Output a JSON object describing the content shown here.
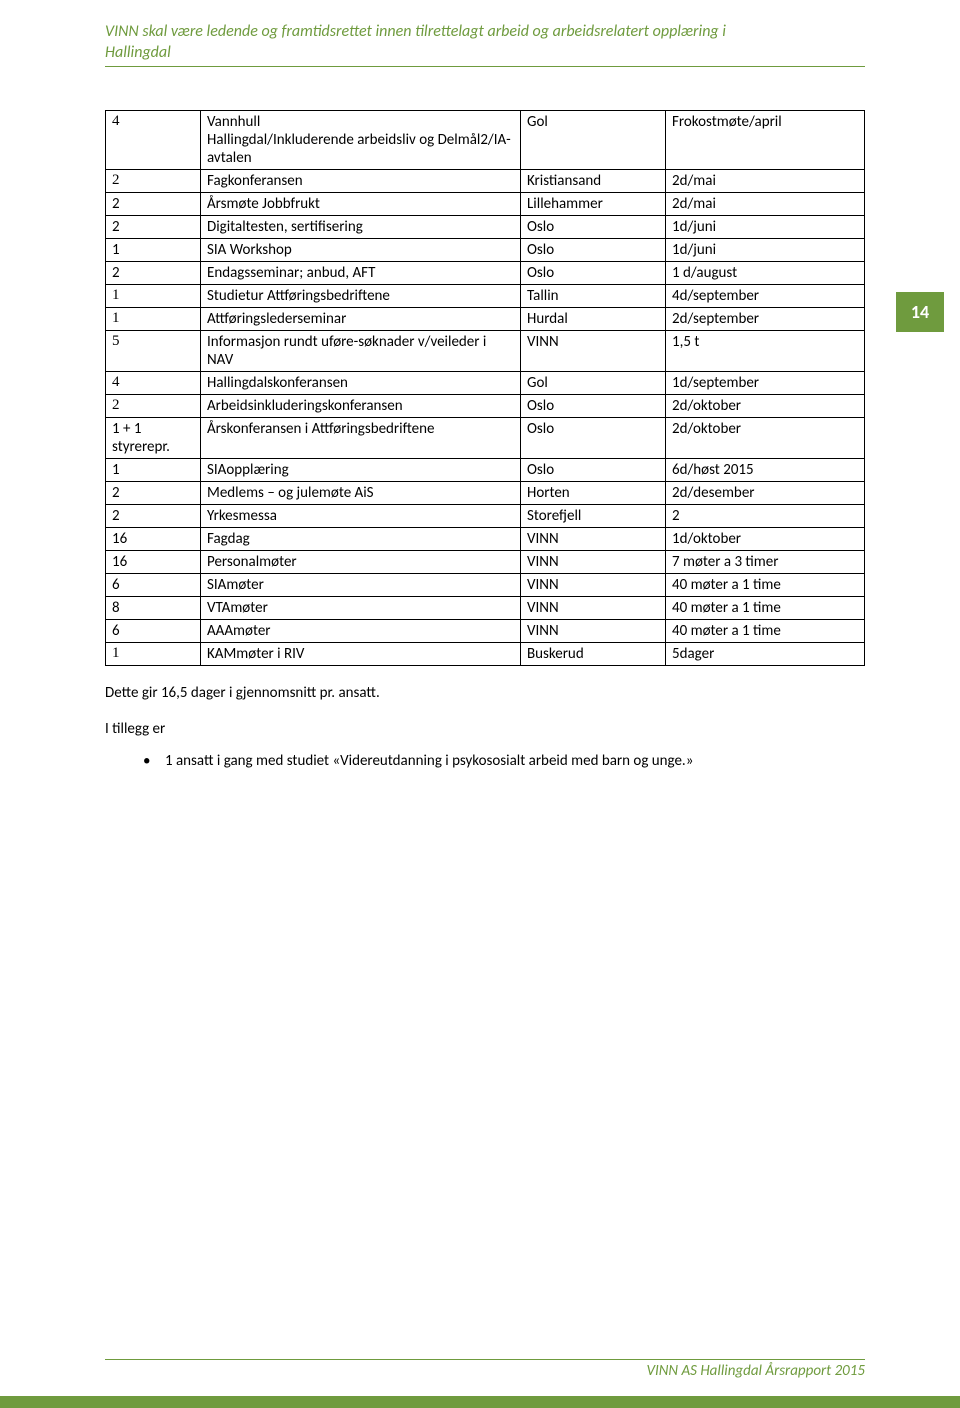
{
  "header": {
    "line1": "VINN skal være ledende og framtidsrettet innen tilrettelagt arbeid og arbeidsrelatert opplæring i",
    "line2": "Hallingdal"
  },
  "rows": [
    {
      "c1": "4",
      "c1f": "tnr",
      "c2": "Vannhull\nHallingdal/Inkluderende arbeidsliv og Delmål2/IA-avtalen",
      "c3": "Gol",
      "c4": "Frokostmøte/april"
    },
    {
      "c1": "2",
      "c1f": "tnr",
      "c2": "Fagkonferansen",
      "c3": "Kristiansand",
      "c4": "2d/mai"
    },
    {
      "c1": "2",
      "c1f": "",
      "c2": "Årsmøte Jobbfrukt",
      "c3": "Lillehammer",
      "c4": "2d/mai"
    },
    {
      "c1": "2",
      "c1f": "",
      "c2": "Digitaltesten, sertifisering",
      "c3": "Oslo",
      "c4": "1d/juni"
    },
    {
      "c1": "1",
      "c1f": "",
      "c2": "SIA Workshop",
      "c3": "Oslo",
      "c4": "1d/juni"
    },
    {
      "c1": "2",
      "c1f": "",
      "c2": "Endagsseminar; anbud, AFT",
      "c3": "Oslo",
      "c4": "1 d/august"
    },
    {
      "c1": "1",
      "c1f": "tnr",
      "c2": "Studietur Attføringsbedriftene",
      "c3": "Tallin",
      "c4": "4d/september"
    },
    {
      "c1": "1",
      "c1f": "tnr",
      "c2": "Attføringslederseminar",
      "c3": "Hurdal",
      "c4": "2d/september"
    },
    {
      "c1": "5",
      "c1f": "tnr",
      "c2": "Informasjon rundt uføre-søknader v/veileder i NAV",
      "c3": "VINN",
      "c4": "1,5 t"
    },
    {
      "c1": "4",
      "c1f": "tnr",
      "c2": "Hallingdalskonferansen",
      "c3": "Gol",
      "c4": "1d/september"
    },
    {
      "c1": "2",
      "c1f": "tnr",
      "c2": "Arbeidsinkluderingskonferansen",
      "c3": "Oslo",
      "c4": "2d/oktober"
    },
    {
      "c1": "1 + 1 styrerepr.",
      "c1f": "",
      "c2": "Årskonferansen i Attføringsbedriftene",
      "c3": "Oslo",
      "c4": "2d/oktober"
    },
    {
      "c1": "1",
      "c1f": "",
      "c2": "SIAopplæring",
      "c3": "Oslo",
      "c4": "6d/høst 2015"
    },
    {
      "c1": "2",
      "c1f": "",
      "c2": "Medlems – og julemøte AiS",
      "c3": "Horten",
      "c4": "2d/desember"
    },
    {
      "c1": "2",
      "c1f": "",
      "c2": "Yrkesmessa",
      "c3": "Storefjell",
      "c4": "2"
    },
    {
      "c1": "16",
      "c1f": "",
      "c2": "Fagdag",
      "c3": "VINN",
      "c4": "1d/oktober"
    },
    {
      "c1": "16",
      "c1f": "",
      "c2": "Personalmøter",
      "c3": "VINN",
      "c4": "7 møter a 3 timer"
    },
    {
      "c1": "6",
      "c1f": "",
      "c2": "SIAmøter",
      "c3": "VINN",
      "c4": "40 møter a 1 time"
    },
    {
      "c1": "8",
      "c1f": "",
      "c2": "VTAmøter",
      "c3": "VINN",
      "c4": "40 møter a 1 time"
    },
    {
      "c1": "6",
      "c1f": "",
      "c2": "AAAmøter",
      "c3": "VINN",
      "c4": "40 møter a 1 time"
    },
    {
      "c1": "1",
      "c1f": "tnr",
      "c2": "KAMmøter i RIV",
      "c3": "Buskerud",
      "c4": "5dager"
    }
  ],
  "post": {
    "p1": "Dette gir 16,5 dager i gjennomsnitt pr. ansatt.",
    "p2": "I tillegg er",
    "bullet": "1 ansatt i gang med studiet «Videreutdanning i psykososialt arbeid med barn og unge.»"
  },
  "page_number": "14",
  "footer": "VINN AS Hallingdal Årsrapport 2015",
  "colors": {
    "accent": "#6f9b3e",
    "text": "#000000",
    "bg": "#ffffff"
  }
}
